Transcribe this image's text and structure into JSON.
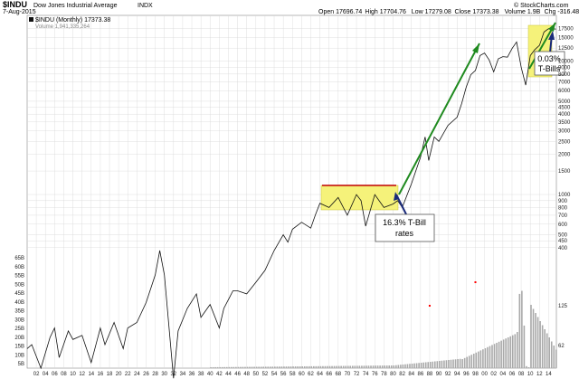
{
  "header": {
    "symbol": "$INDU",
    "name": "Dow Jones Industrial Average",
    "exchange": "INDX",
    "date": "7-Aug-2015",
    "watermark": "© StockCharts.com",
    "stats": [
      {
        "label": "Open",
        "value": "17696.74"
      },
      {
        "label": "High",
        "value": "17704.76"
      },
      {
        "label": "Low",
        "value": "17279.08"
      },
      {
        "label": "Close",
        "value": "17373.38"
      },
      {
        "label": "Volume",
        "value": "1.9B"
      },
      {
        "label": "Chg",
        "value": "-316.48 (-1.79%)"
      }
    ]
  },
  "legend": {
    "series": "$INDU (Monthly) 17373.38",
    "volume": "Volume 1,941,335,264"
  },
  "annotations": {
    "tbill_high": [
      "16.3% T-Bill",
      "rates"
    ],
    "tbill_low": [
      "0.03%",
      "T-Bills"
    ]
  },
  "colors": {
    "line": "#111111",
    "highlight": "#f5f27a",
    "resistance": "#c00000",
    "trend": "#1f8a1f",
    "callout_arrow": "#1a2a7a",
    "volume": "#a9a9a9",
    "grid": "#d7d7d7",
    "volume_spike": "#ff0000"
  },
  "chart_data": {
    "type": "line",
    "title": "$INDU Dow Jones Industrial Average INDX",
    "scale": "log",
    "ylim": [
      50,
      22000
    ],
    "x_tick_labels": [
      "02",
      "04",
      "06",
      "08",
      "10",
      "12",
      "14",
      "16",
      "18",
      "20",
      "22",
      "24",
      "26",
      "28",
      "30",
      "32",
      "34",
      "36",
      "38",
      "40",
      "42",
      "44",
      "46",
      "48",
      "50",
      "52",
      "54",
      "56",
      "58",
      "60",
      "62",
      "64",
      "66",
      "68",
      "70",
      "72",
      "74",
      "76",
      "78",
      "80",
      "82",
      "84",
      "86",
      "88",
      "90",
      "92",
      "94",
      "96",
      "98",
      "00",
      "02",
      "04",
      "06",
      "08",
      "10",
      "12",
      "14"
    ],
    "y_right_tick_labels": [
      "17500",
      "15000",
      "12500",
      "10000",
      "9000",
      "8000",
      "7000",
      "6000",
      "5000",
      "4500",
      "4000",
      "3500",
      "3000",
      "2500",
      "2000",
      "1500",
      "1000",
      "900",
      "800",
      "700",
      "600",
      "500",
      "450",
      "400"
    ],
    "y_left_tick_labels": [
      "65B",
      "60B",
      "55B",
      "50B",
      "45B",
      "40B",
      "35B",
      "30B",
      "25B",
      "20B",
      "15B",
      "10B",
      "5B"
    ],
    "volume_right_tick_labels": [
      "125",
      "62"
    ],
    "series": [
      {
        "name": "$INDU (Monthly)",
        "x": [
          1900,
          1901,
          1903,
          1905,
          1906,
          1907,
          1909,
          1910,
          1912,
          1914,
          1916,
          1917,
          1919,
          1921,
          1922,
          1924,
          1926,
          1928,
          1929,
          1930,
          1932,
          1933,
          1935,
          1937,
          1938,
          1940,
          1942,
          1943,
          1945,
          1946,
          1948,
          1950,
          1952,
          1954,
          1956,
          1957,
          1958,
          1960,
          1962,
          1963,
          1964,
          1966,
          1968,
          1970,
          1972,
          1973,
          1974,
          1976,
          1978,
          1980,
          1981,
          1982,
          1984,
          1986,
          1987,
          1987.8,
          1989,
          1990,
          1992,
          1994,
          1995,
          1996,
          1997,
          1998,
          1999,
          2000,
          2001,
          2002,
          2003,
          2004,
          2005,
          2006,
          2007,
          2008,
          2009,
          2010,
          2011,
          2012,
          2013,
          2014,
          2015.6
        ],
        "y": [
          70,
          75,
          50,
          85,
          100,
          60,
          95,
          82,
          88,
          55,
          100,
          75,
          110,
          70,
          100,
          110,
          155,
          250,
          380,
          250,
          42,
          95,
          140,
          180,
          120,
          150,
          100,
          140,
          190,
          190,
          180,
          220,
          270,
          380,
          500,
          440,
          550,
          620,
          560,
          700,
          860,
          800,
          950,
          700,
          1000,
          900,
          580,
          1000,
          800,
          850,
          900,
          800,
          1200,
          1900,
          2700,
          1800,
          2700,
          2500,
          3300,
          3800,
          4800,
          6400,
          7900,
          8500,
          11000,
          11500,
          10200,
          8300,
          10400,
          10800,
          10700,
          12400,
          13900,
          9000,
          6600,
          11000,
          12200,
          13100,
          16500,
          17500,
          17373
        ]
      }
    ]
  }
}
